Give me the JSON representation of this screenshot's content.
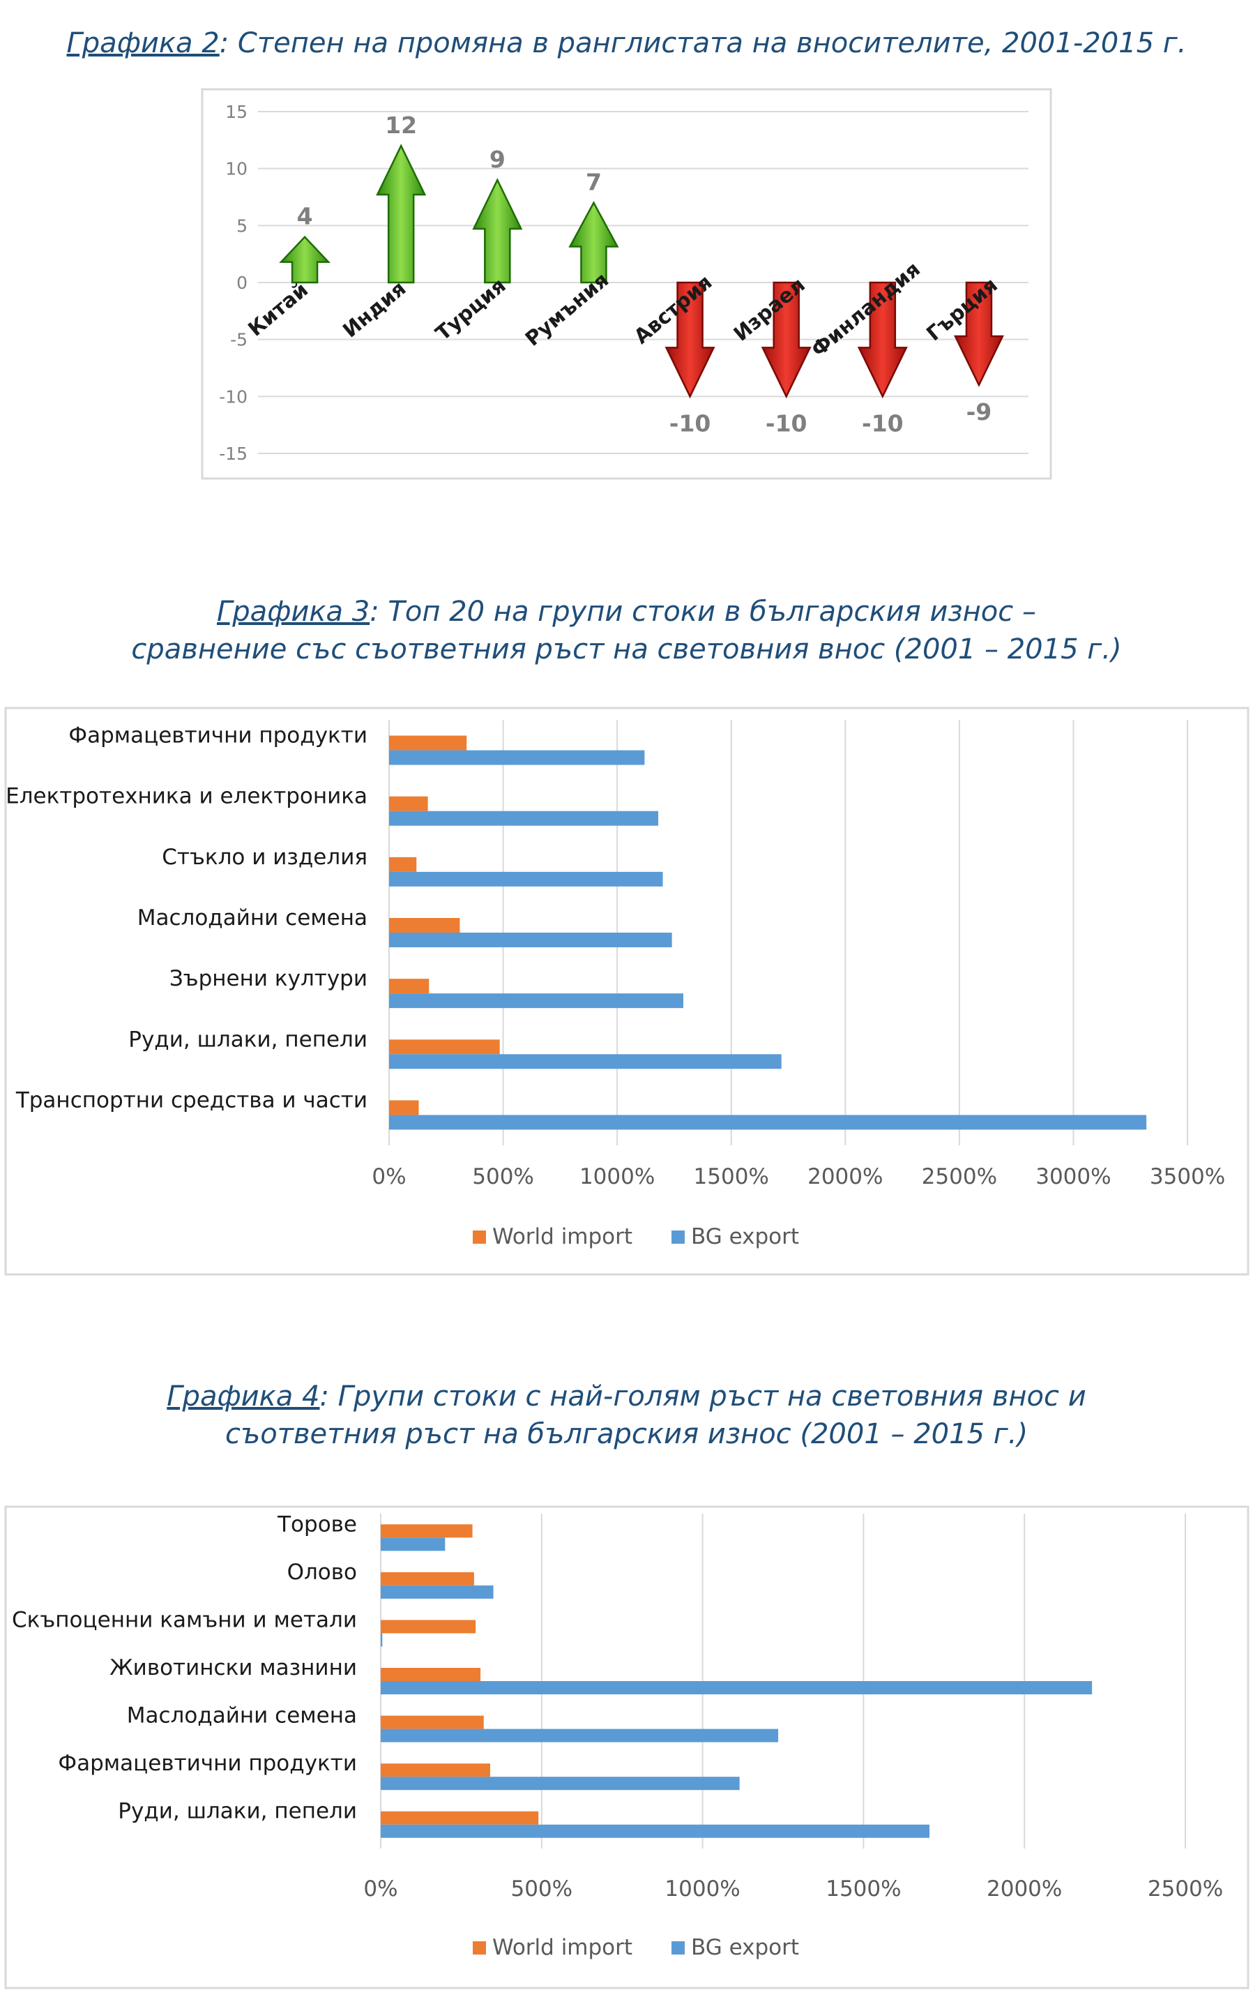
{
  "captions": [
    {
      "ref": "Графика 2",
      "text": ": Степен на промяна в ранглистата на вносителите, 2001-2015 г.",
      "text2": ""
    },
    {
      "ref": "Графика 3",
      "text": ": Топ 20 на групи стоки в българския износ –",
      "text2": "сравнение със съответния ръст на световния внос (2001 – 2015 г.)"
    },
    {
      "ref": "Графика 4",
      "text": ": Групи стоки с най-голям ръст на световния внос и",
      "text2": "съответния ръст на българския износ (2001 – 2015 г.)"
    }
  ],
  "colors": {
    "up": "#4caf1f",
    "down": "#d0201a",
    "world_import": "#ed7d31",
    "bg_export": "#5b9bd5",
    "grid": "#d9d9d9",
    "axis_text": "#7f7f7f"
  },
  "chart_data": [
    {
      "type": "bar",
      "title": "",
      "categories": [
        "Китай",
        "Индия",
        "Турция",
        "Румъния",
        "Австрия",
        "Израел",
        "Финландия",
        "Гърция"
      ],
      "values": [
        4,
        12,
        9,
        7,
        -10,
        -10,
        -10,
        -9
      ],
      "ylim": [
        -15,
        15
      ],
      "yticks": [
        15,
        10,
        5,
        0,
        -5,
        -10,
        -15
      ],
      "grid": true,
      "legend": "none"
    },
    {
      "type": "bar",
      "orientation": "horizontal",
      "title": "",
      "categories": [
        "Фармацевтични продукти",
        "Електротехника и електроника",
        "Стъкло и изделия",
        "Маслодайни семена",
        "Зърнени култури",
        "Руди, шлаки, пепели",
        "Транспортни средства и части"
      ],
      "series": [
        {
          "name": "World import",
          "values": [
            340,
            170,
            120,
            310,
            175,
            485,
            130
          ]
        },
        {
          "name": "BG export",
          "values": [
            1120,
            1180,
            1200,
            1240,
            1290,
            1720,
            3320
          ]
        }
      ],
      "xlim": [
        0,
        3500
      ],
      "xticks": [
        "0%",
        "500%",
        "1000%",
        "1500%",
        "2000%",
        "2500%",
        "3000%",
        "3500%"
      ],
      "grid": true,
      "legend": "bottom"
    },
    {
      "type": "bar",
      "orientation": "horizontal",
      "title": "",
      "categories": [
        "Торове",
        "Олово",
        "Скъпоценни камъни и метали",
        "Животински мазнини",
        "Маслодайни семена",
        "Фармацевтични продукти",
        "Руди, шлаки, пепели"
      ],
      "series": [
        {
          "name": "World import",
          "values": [
            285,
            290,
            295,
            310,
            320,
            340,
            490
          ]
        },
        {
          "name": "BG export",
          "values": [
            200,
            350,
            5,
            2210,
            1235,
            1115,
            1705
          ]
        }
      ],
      "xlim": [
        0,
        2500
      ],
      "xticks": [
        "0%",
        "500%",
        "1000%",
        "1500%",
        "2000%",
        "2500%"
      ],
      "grid": true,
      "legend": "bottom"
    }
  ]
}
